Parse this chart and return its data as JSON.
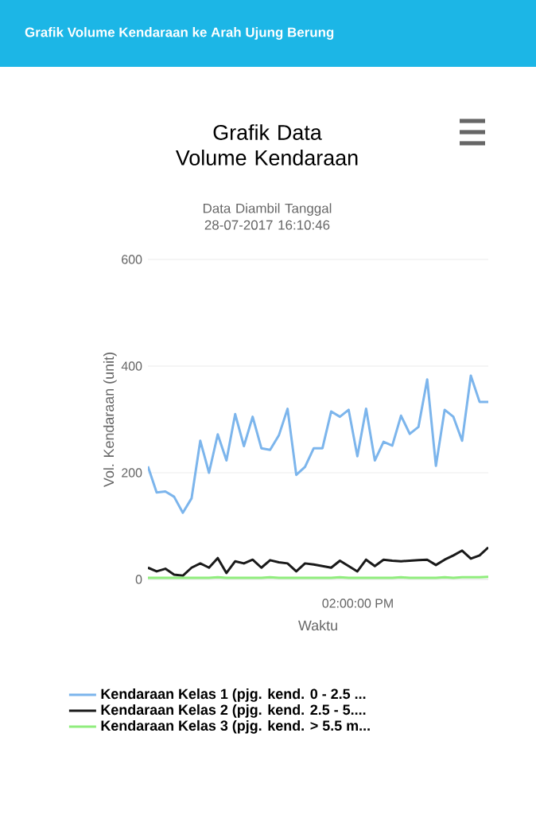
{
  "chart_data": {
    "type": "line",
    "title": "Grafik Data Volume Kendaraan",
    "subtitle": "Data Diambil Tanggal 28-07-2017 16:10:46",
    "annotations": [
      "Grafik Volume Kendaraan ke Arah Ujung Berung",
      "02:00:00 PM"
    ],
    "xlabel": "Waktu",
    "ylabel": "Vol. Kendaraan (unit)",
    "categories": [
      null,
      null,
      null,
      null,
      null,
      null,
      null,
      null,
      null,
      null,
      null,
      null,
      null,
      null,
      null,
      null,
      null,
      null,
      null,
      null,
      null,
      null,
      null,
      null,
      null,
      null,
      null,
      null,
      null,
      null,
      null,
      null,
      null,
      null,
      null,
      null,
      null,
      null,
      null,
      null
    ],
    "ylim": [
      0,
      600
    ],
    "yticks": [
      {
        "value": 0,
        "label": "0"
      },
      {
        "value": 200,
        "label": "200"
      },
      {
        "value": 400,
        "label": "400"
      },
      {
        "value": 600,
        "label": "600"
      }
    ],
    "grid": "y",
    "legend": "bottom",
    "marker": "none",
    "line_style": "solid",
    "series": [
      {
        "name": "Kendaraan Kelas 1 (pjg. kend. 0 - 2.5 ...",
        "color": "#7cb5ec",
        "values": [
          212,
          163,
          165,
          155,
          125,
          152,
          260,
          200,
          272,
          223,
          310,
          250,
          305,
          246,
          243,
          270,
          320,
          196,
          211,
          246,
          246,
          315,
          305,
          318,
          231,
          320,
          223,
          258,
          251,
          307,
          273,
          286,
          375,
          213,
          318,
          305,
          260,
          382,
          333,
          333
        ]
      },
      {
        "name": "Kendaraan Kelas 2 (pjg. kend. 2.5 - 5....",
        "color": "#1a1a1a",
        "values": [
          22,
          15,
          20,
          9,
          7,
          22,
          30,
          22,
          40,
          12,
          34,
          30,
          37,
          22,
          36,
          32,
          30,
          15,
          30,
          28,
          25,
          22,
          35,
          25,
          15,
          37,
          25,
          37,
          35,
          34,
          35,
          36,
          37,
          27,
          37,
          45,
          54,
          39,
          45,
          60
        ]
      },
      {
        "name": "Kendaraan Kelas 3 (pjg. kend. > 5.5 m...",
        "color": "#90ed7d",
        "values": [
          3,
          3,
          3,
          3,
          3,
          3,
          3,
          3,
          4,
          3,
          3,
          3,
          3,
          3,
          4,
          3,
          3,
          3,
          3,
          3,
          3,
          3,
          4,
          3,
          3,
          3,
          3,
          3,
          3,
          4,
          3,
          3,
          3,
          3,
          4,
          3,
          4,
          4,
          4,
          5
        ]
      }
    ]
  }
}
